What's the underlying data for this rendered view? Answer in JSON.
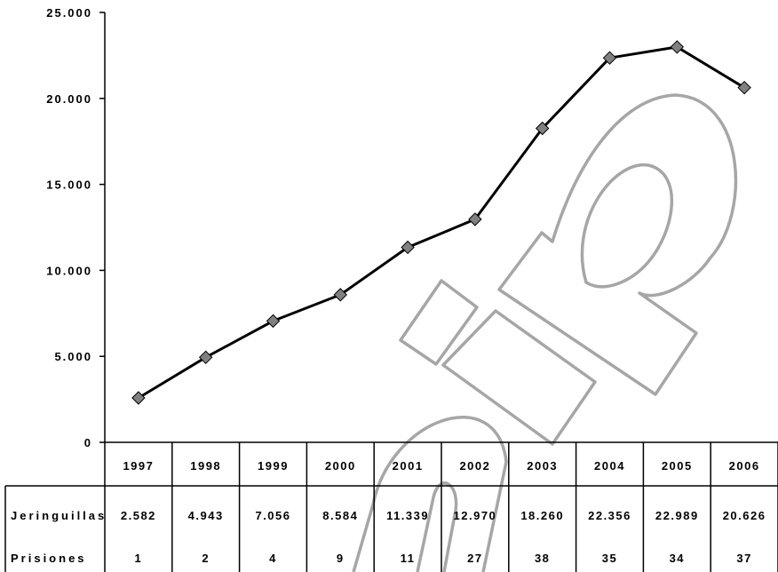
{
  "chart_data": {
    "type": "line",
    "categories": [
      "1997",
      "1998",
      "1999",
      "2000",
      "2001",
      "2002",
      "2003",
      "2004",
      "2005",
      "2006"
    ],
    "series": [
      {
        "values": [
          2582,
          4943,
          7056,
          8584,
          11339,
          12970,
          18260,
          22356,
          22989,
          20626
        ]
      }
    ],
    "y_ticks": [
      "0",
      "5.000",
      "10.000",
      "15.000",
      "20.000",
      "25.000"
    ],
    "ylim": [
      0,
      25000
    ],
    "grid": false,
    "table": {
      "rows": [
        {
          "label": "Jeringuillas",
          "values": [
            "2.582",
            "4.943",
            "7.056",
            "8.584",
            "11.339",
            "12.970",
            "18.260",
            "22.356",
            "22.989",
            "20.626"
          ]
        },
        {
          "label": "Prisiones",
          "values": [
            "1",
            "2",
            "4",
            "9",
            "11",
            "27",
            "38",
            "35",
            "34",
            "37"
          ]
        }
      ]
    }
  },
  "colors": {
    "line": "#000000",
    "marker": "#808080",
    "watermark": "#a6a6a6"
  }
}
